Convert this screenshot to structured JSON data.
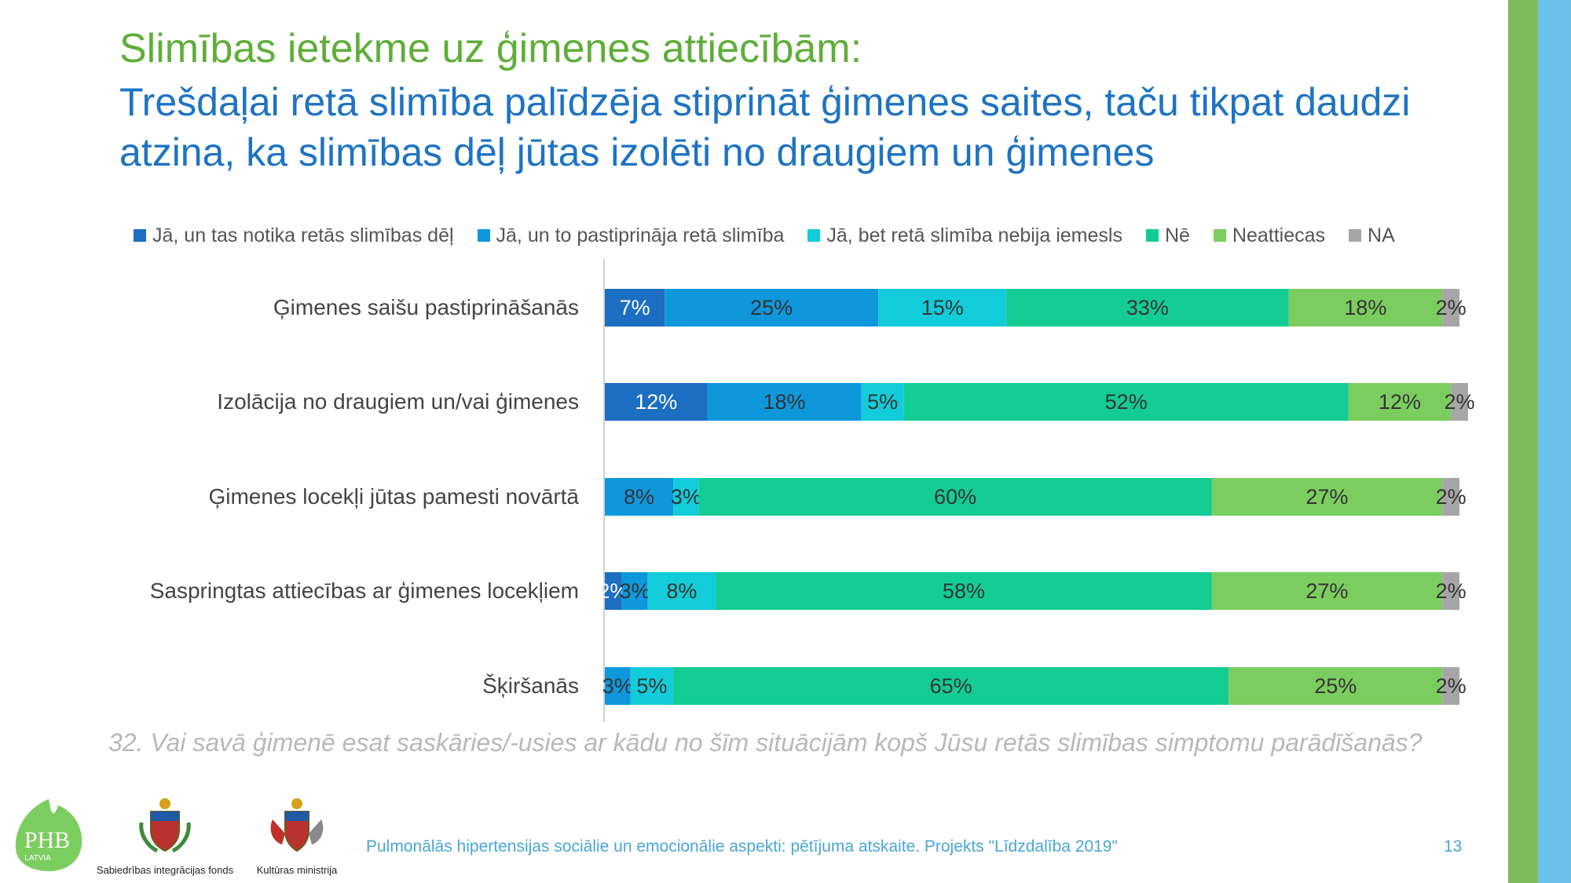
{
  "slide": {
    "title_line1": "Slimības ietekme uz ģimenes attiecībām:",
    "title_line2": "Trešdaļai retā slimība palīdzēja stiprināt ģimenes saites, taču tikpat daudzi atzina, ka slimības dēļ jūtas izolēti no draugiem un ģimenes",
    "question": "32. Vai savā ģimenē esat saskāries/-usies ar kādu no šīm situācijām kopš Jūsu retās slimības simptomu parādīšanās?",
    "footer": "Pulmonālās hipertensijas sociālie un emocionālie aspekti: pētījuma atskaite. Projekts \"Līdzdalība 2019\"",
    "page_number": "13",
    "logos": {
      "phb": "PHB",
      "phb_sub": "LATVIA",
      "sif": "Sabiedrības integrācijas fonds",
      "km": "Kultūras ministrija"
    }
  },
  "colors": {
    "title_green": "#5fae3a",
    "title_blue": "#1e73c4",
    "accent_green": "#7fba5a",
    "accent_blue": "#6cc1ea"
  },
  "chart_data": {
    "type": "bar",
    "orientation": "horizontal",
    "stacked": true,
    "categories": [
      "Ģimenes saišu pastiprināšanās",
      "Izolācija no draugiem un/vai ģimenes",
      "Ģimenes locekļi jūtas pamesti novārtā",
      "Saspringtas attiecības ar ģimenes locekļiem",
      "Šķiršanās"
    ],
    "series": [
      {
        "name": "Jā, un tas notika retās slimības dēļ",
        "color": "#1b6ec2",
        "values": [
          7,
          12,
          0,
          2,
          0
        ],
        "labels": [
          "7%",
          "12%",
          "",
          "2%",
          ""
        ]
      },
      {
        "name": "Jā, un to pastiprināja retā slimība",
        "color": "#0f97dc",
        "values": [
          25,
          18,
          8,
          3,
          3
        ],
        "labels": [
          "25%",
          "18%",
          "8%",
          "3%",
          "3%"
        ]
      },
      {
        "name": "Jā, bet retā slimība nebija iemesls",
        "color": "#12ccd9",
        "values": [
          15,
          5,
          3,
          8,
          5
        ],
        "labels": [
          "15%",
          "5%",
          "3%",
          "8%",
          "5%"
        ]
      },
      {
        "name": "Nē",
        "color": "#13cc94",
        "values": [
          33,
          52,
          60,
          58,
          65
        ],
        "labels": [
          "33%",
          "52%",
          "60%",
          "58%",
          "65%"
        ]
      },
      {
        "name": "Neattiecas",
        "color": "#7ccd5f",
        "values": [
          18,
          12,
          27,
          27,
          25
        ],
        "labels": [
          "18%",
          "12%",
          "27%",
          "27%",
          "25%"
        ]
      },
      {
        "name": "NA",
        "color": "#a6a6a6",
        "values": [
          2,
          2,
          2,
          2,
          2
        ],
        "labels": [
          "2%",
          "2%",
          "2%",
          "2%",
          "2%"
        ]
      }
    ],
    "value_labels_color": [
      "#ffffff",
      "#333333",
      "#333333",
      "#333333",
      "#333333",
      "#333333"
    ],
    "xlim": [
      0,
      100
    ],
    "legend_position": "top",
    "grid": false
  }
}
